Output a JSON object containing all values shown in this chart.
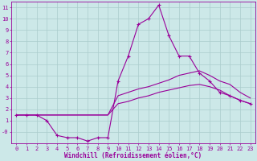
{
  "x_values": [
    0,
    1,
    2,
    3,
    4,
    5,
    6,
    7,
    8,
    9,
    10,
    11,
    12,
    13,
    14,
    15,
    16,
    17,
    18,
    19,
    20,
    21,
    22,
    23
  ],
  "line_main": [
    1.5,
    1.5,
    1.5,
    1.0,
    -0.3,
    -0.5,
    -0.5,
    -0.8,
    -0.5,
    -0.5,
    4.5,
    6.7,
    9.5,
    10.0,
    11.2,
    8.5,
    6.7,
    6.7,
    5.2,
    4.5,
    3.5,
    3.2,
    2.8,
    2.5
  ],
  "line_upper": [
    1.5,
    1.5,
    1.5,
    1.5,
    1.5,
    1.5,
    1.5,
    1.5,
    1.5,
    1.5,
    3.2,
    3.5,
    3.8,
    4.0,
    4.3,
    4.6,
    5.0,
    5.2,
    5.4,
    5.0,
    4.5,
    4.2,
    3.5,
    3.0
  ],
  "line_lower": [
    1.5,
    1.5,
    1.5,
    1.5,
    1.5,
    1.5,
    1.5,
    1.5,
    1.5,
    1.5,
    2.5,
    2.7,
    3.0,
    3.2,
    3.5,
    3.7,
    3.9,
    4.1,
    4.2,
    4.0,
    3.7,
    3.2,
    2.8,
    2.5
  ],
  "color": "#990099",
  "bg_color": "#cce8e8",
  "grid_color": "#aacccc",
  "xlabel": "Windchill (Refroidissement éolien,°C)",
  "ylim_min": -1.0,
  "ylim_max": 11.5,
  "xlim_min": -0.5,
  "xlim_max": 23.5,
  "yticks": [
    0,
    1,
    2,
    3,
    4,
    5,
    6,
    7,
    8,
    9,
    10,
    11
  ],
  "ytick_labels": [
    "-0",
    "1",
    "2",
    "3",
    "4",
    "5",
    "6",
    "7",
    "8",
    "9",
    "10",
    "11"
  ],
  "xticks": [
    0,
    1,
    2,
    3,
    4,
    5,
    6,
    7,
    8,
    9,
    10,
    11,
    12,
    13,
    14,
    15,
    16,
    17,
    18,
    19,
    20,
    21,
    22,
    23
  ],
  "tick_fontsize": 5.0,
  "xlabel_fontsize": 5.5,
  "marker": "+",
  "markersize": 3.5,
  "linewidth": 0.8
}
